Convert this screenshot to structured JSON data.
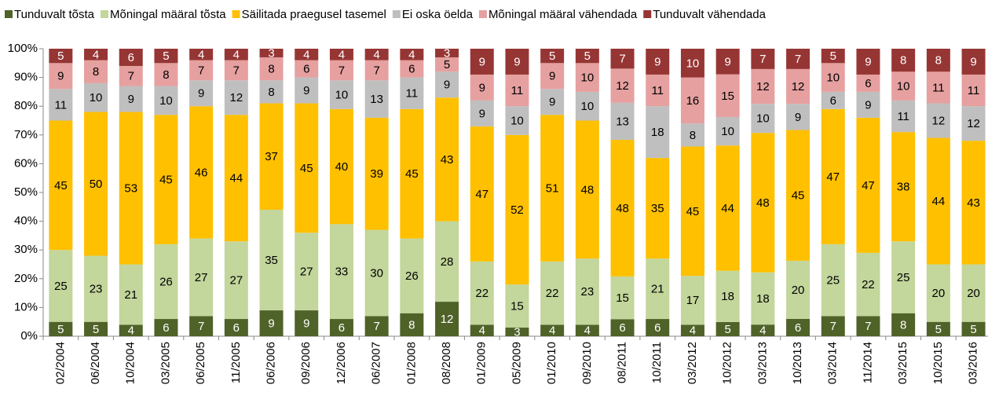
{
  "chart_data": {
    "type": "stacked_bar_percent",
    "categories": [
      "02/2004",
      "06/2004",
      "10/2004",
      "03/2005",
      "06/2005",
      "11/2005",
      "06/2006",
      "09/2006",
      "12/2006",
      "06/2007",
      "01/2008",
      "08/2008",
      "01/2009",
      "05/2009",
      "01/2010",
      "09/2010",
      "08/2011",
      "10/2011",
      "03/2012",
      "10/2012",
      "03/2013",
      "10/2013",
      "03/2014",
      "11/2014",
      "03/2015",
      "10/2015",
      "03/2016"
    ],
    "series": [
      {
        "name": "Tunduvalt tõsta",
        "color": "#4f6228",
        "values": [
          5,
          5,
          4,
          6,
          7,
          6,
          9,
          9,
          6,
          7,
          8,
          12,
          4,
          3,
          4,
          4,
          6,
          6,
          4,
          5,
          4,
          6,
          7,
          7,
          8,
          5,
          5
        ]
      },
      {
        "name": "Mõningal määral tõsta",
        "color": "#c3d69b",
        "values": [
          25,
          23,
          21,
          26,
          27,
          27,
          35,
          27,
          33,
          30,
          26,
          28,
          22,
          15,
          22,
          23,
          15,
          21,
          17,
          18,
          18,
          20,
          25,
          22,
          25,
          20,
          20
        ]
      },
      {
        "name": "Säilitada praegusel tasemel",
        "color": "#ffc000",
        "values": [
          45,
          50,
          53,
          45,
          46,
          44,
          37,
          45,
          40,
          39,
          45,
          43,
          47,
          52,
          51,
          48,
          48,
          35,
          45,
          44,
          48,
          45,
          47,
          47,
          38,
          44,
          43
        ]
      },
      {
        "name": "Ei oska öelda",
        "color": "#bfbfbf",
        "values": [
          11,
          10,
          9,
          10,
          9,
          12,
          8,
          9,
          10,
          13,
          11,
          9,
          9,
          10,
          9,
          10,
          13,
          18,
          8,
          10,
          10,
          9,
          6,
          9,
          11,
          12,
          12
        ]
      },
      {
        "name": "Mõningal määral vähendada",
        "color": "#e6a0a0",
        "values": [
          9,
          8,
          7,
          8,
          7,
          7,
          8,
          6,
          7,
          7,
          6,
          5,
          9,
          11,
          9,
          10,
          12,
          11,
          16,
          15,
          12,
          12,
          10,
          6,
          10,
          11,
          11
        ]
      },
      {
        "name": "Tunduvalt vähendada",
        "color": "#963634",
        "values": [
          5,
          4,
          6,
          5,
          4,
          4,
          3,
          4,
          4,
          4,
          4,
          3,
          9,
          9,
          5,
          5,
          7,
          9,
          10,
          9,
          7,
          7,
          5,
          9,
          8,
          8,
          9
        ]
      }
    ],
    "ylim": [
      0,
      100
    ],
    "yticks": [
      {
        "value": 0,
        "label": "0%"
      },
      {
        "value": 10,
        "label": "10%"
      },
      {
        "value": 20,
        "label": "20%"
      },
      {
        "value": 30,
        "label": "30%"
      },
      {
        "value": 40,
        "label": "40%"
      },
      {
        "value": 50,
        "label": "50%"
      },
      {
        "value": 60,
        "label": "60%"
      },
      {
        "value": 70,
        "label": "70%"
      },
      {
        "value": 80,
        "label": "80%"
      },
      {
        "value": 90,
        "label": "90%"
      },
      {
        "value": 100,
        "label": "100%"
      }
    ],
    "legend": "top",
    "grid": false
  }
}
